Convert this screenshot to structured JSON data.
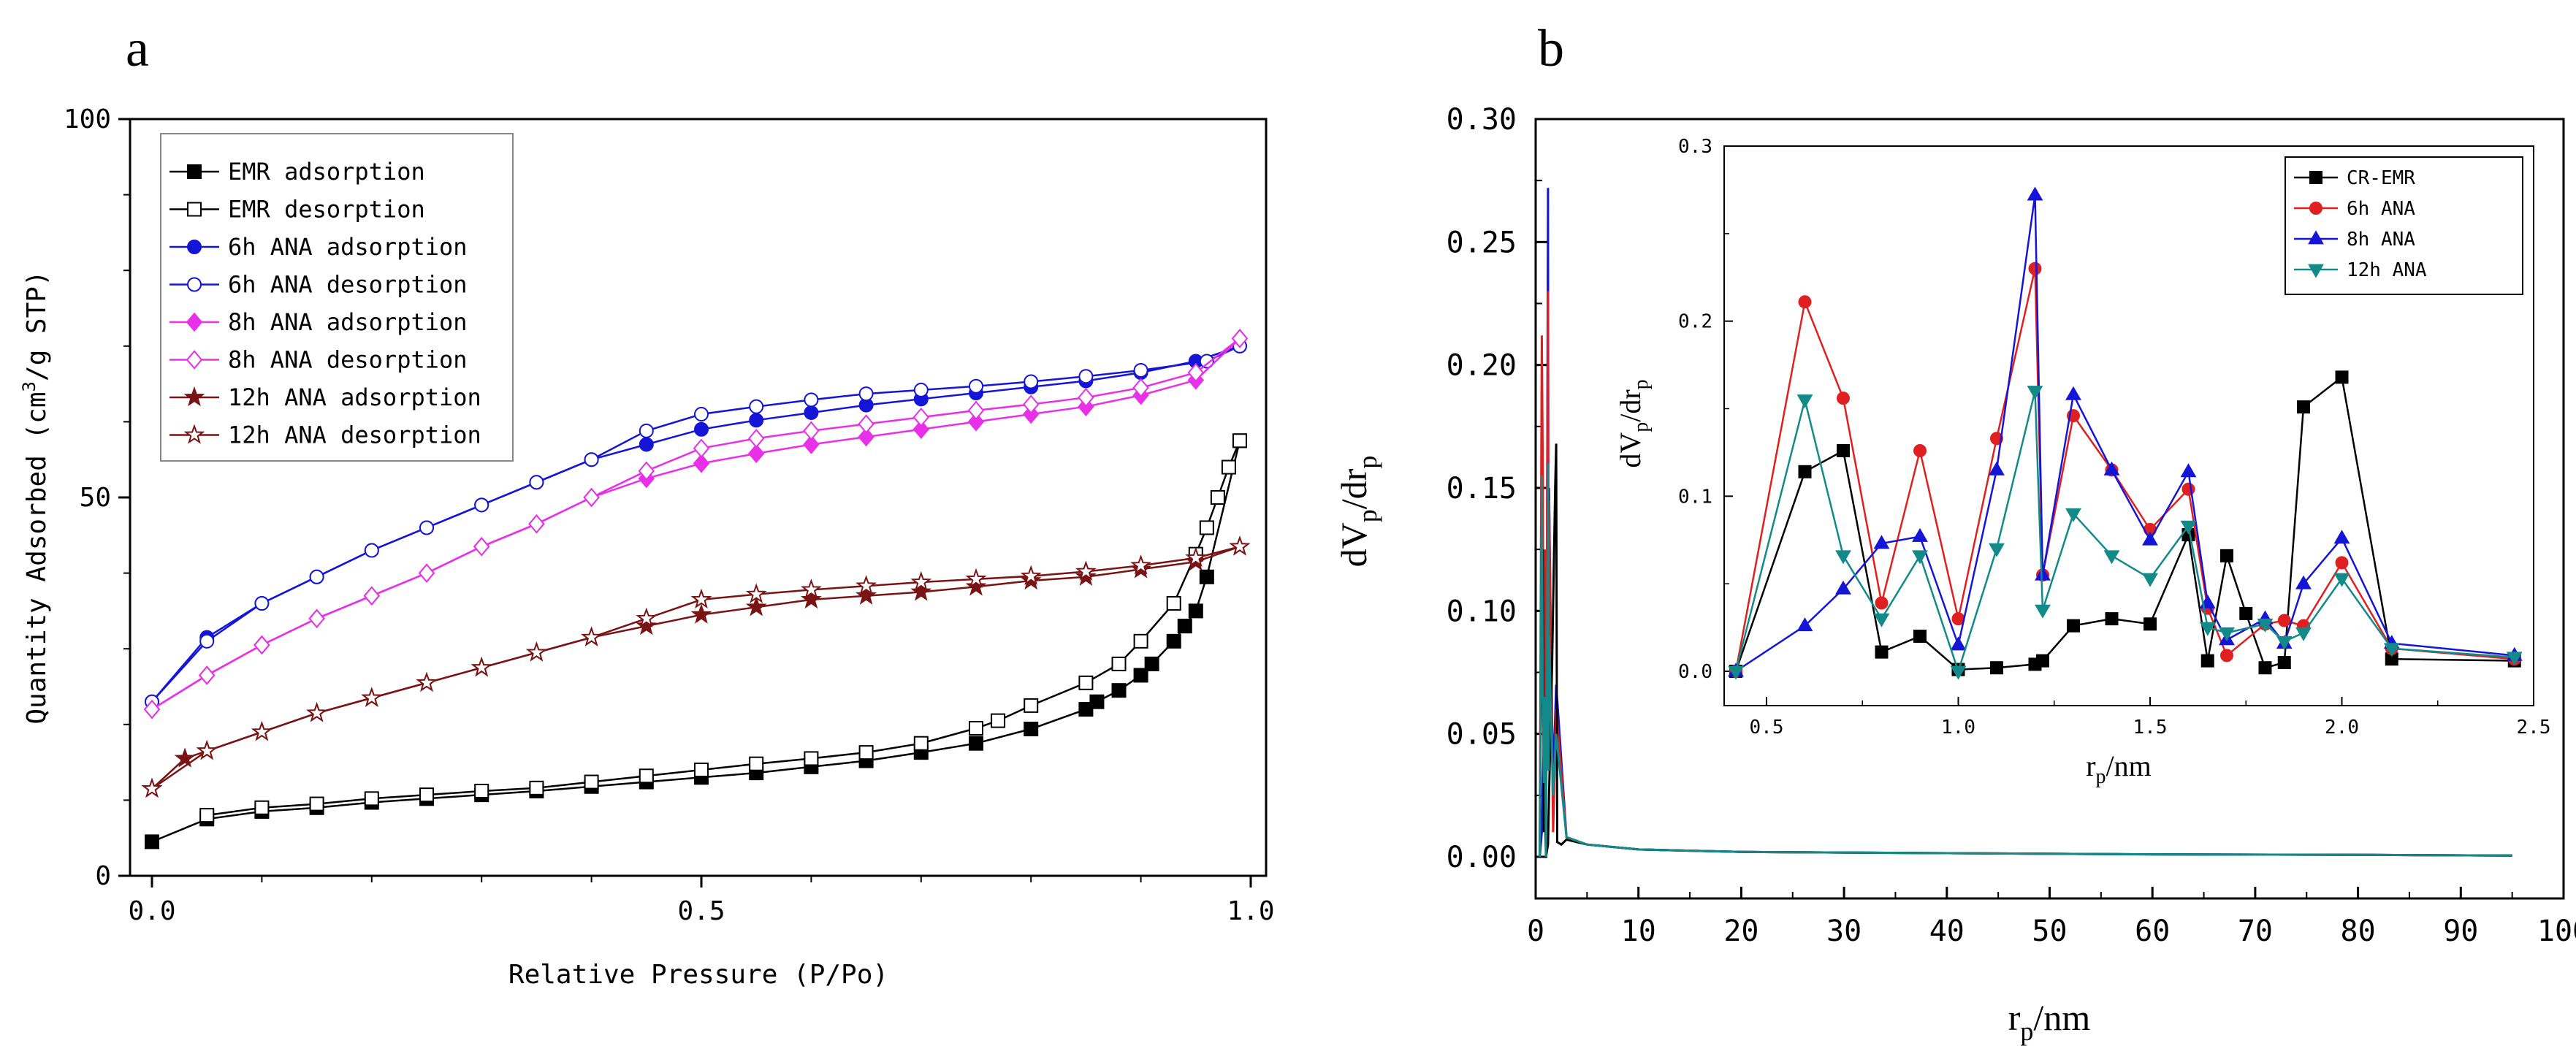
{
  "chart_data": [
    {
      "panel_label": "a",
      "type": "line",
      "xlabel": "Relative Pressure (P/Po)",
      "ylabel_parts": [
        "Quantity Adsorbed (cm",
        "3",
        "/g STP)"
      ],
      "xlim": [
        0,
        1.0
      ],
      "ylim": [
        0,
        100
      ],
      "xticks": [
        "0.0",
        "0.5",
        "1.0"
      ],
      "yticks": [
        "0",
        "50",
        "100"
      ],
      "series": [
        {
          "name": "EMR adsorption",
          "color": "#000000",
          "marker": "square",
          "filled": true,
          "x": [
            0.0,
            0.05,
            0.1,
            0.15,
            0.2,
            0.25,
            0.3,
            0.35,
            0.4,
            0.45,
            0.5,
            0.55,
            0.6,
            0.65,
            0.7,
            0.75,
            0.8,
            0.85,
            0.86,
            0.88,
            0.9,
            0.91,
            0.93,
            0.94,
            0.95,
            0.96,
            0.99
          ],
          "y": [
            4.5,
            7.5,
            8.5,
            9.0,
            9.7,
            10.2,
            10.7,
            11.2,
            11.8,
            12.4,
            13.0,
            13.6,
            14.4,
            15.2,
            16.3,
            17.5,
            19.4,
            22.0,
            23.0,
            24.5,
            26.5,
            28.0,
            31.0,
            33.0,
            35.0,
            39.5,
            57.5
          ]
        },
        {
          "name": "EMR desorption",
          "color": "#000000",
          "marker": "square",
          "filled": false,
          "x": [
            0.99,
            0.98,
            0.97,
            0.96,
            0.95,
            0.93,
            0.9,
            0.88,
            0.85,
            0.8,
            0.77,
            0.75,
            0.7,
            0.65,
            0.6,
            0.55,
            0.5,
            0.45,
            0.4,
            0.35,
            0.3,
            0.25,
            0.2,
            0.15,
            0.1,
            0.05
          ],
          "y": [
            57.5,
            54.0,
            50.0,
            46.0,
            42.5,
            36.0,
            31.0,
            28.0,
            25.5,
            22.5,
            20.5,
            19.5,
            17.5,
            16.3,
            15.5,
            14.8,
            14.0,
            13.2,
            12.4,
            11.6,
            11.2,
            10.7,
            10.2,
            9.5,
            9.0,
            8.0
          ]
        },
        {
          "name": "6h ANA adsorption",
          "color": "#1515d8",
          "marker": "circle",
          "filled": true,
          "x": [
            0.0,
            0.05,
            0.1,
            0.15,
            0.2,
            0.25,
            0.3,
            0.35,
            0.4,
            0.45,
            0.5,
            0.55,
            0.6,
            0.65,
            0.7,
            0.75,
            0.8,
            0.85,
            0.9,
            0.95,
            0.99
          ],
          "y": [
            23.0,
            31.5,
            36.0,
            39.5,
            43.0,
            46.0,
            49.0,
            52.0,
            55.0,
            57.0,
            59.0,
            60.2,
            61.2,
            62.2,
            63.0,
            63.8,
            64.6,
            65.4,
            66.5,
            68.0,
            70.0
          ]
        },
        {
          "name": "6h ANA desorption",
          "color": "#1515d8",
          "marker": "circle",
          "filled": false,
          "x": [
            0.99,
            0.96,
            0.9,
            0.85,
            0.8,
            0.75,
            0.7,
            0.65,
            0.6,
            0.55,
            0.5,
            0.45,
            0.4,
            0.35,
            0.3,
            0.25,
            0.2,
            0.15,
            0.1,
            0.05,
            0.0
          ],
          "y": [
            70.0,
            68.0,
            66.8,
            66.0,
            65.3,
            64.7,
            64.2,
            63.7,
            62.9,
            62.0,
            61.0,
            58.8,
            55.0,
            52.0,
            49.0,
            46.0,
            43.0,
            39.5,
            36.0,
            31.0,
            23.0
          ]
        },
        {
          "name": "8h ANA adsorption",
          "color": "#e830e8",
          "marker": "diamond",
          "filled": true,
          "x": [
            0.0,
            0.05,
            0.1,
            0.15,
            0.2,
            0.25,
            0.3,
            0.35,
            0.4,
            0.45,
            0.5,
            0.55,
            0.6,
            0.65,
            0.7,
            0.75,
            0.8,
            0.85,
            0.9,
            0.95,
            0.99
          ],
          "y": [
            22.0,
            26.5,
            30.5,
            34.0,
            37.0,
            40.0,
            43.5,
            46.5,
            50.0,
            52.5,
            54.5,
            55.8,
            57.0,
            58.0,
            59.0,
            60.0,
            61.0,
            62.0,
            63.5,
            65.5,
            71.0
          ]
        },
        {
          "name": "8h ANA desorption",
          "color": "#e830e8",
          "marker": "diamond",
          "filled": false,
          "x": [
            0.99,
            0.95,
            0.9,
            0.85,
            0.8,
            0.75,
            0.7,
            0.65,
            0.6,
            0.55,
            0.5,
            0.45,
            0.4,
            0.35,
            0.3,
            0.25,
            0.2,
            0.15,
            0.1,
            0.05,
            0.0
          ],
          "y": [
            71.0,
            66.5,
            64.5,
            63.2,
            62.3,
            61.5,
            60.6,
            59.7,
            58.8,
            57.8,
            56.5,
            53.5,
            50.0,
            46.5,
            43.5,
            40.0,
            37.0,
            34.0,
            30.5,
            26.5,
            22.0
          ]
        },
        {
          "name": "12h ANA adsorption",
          "color": "#7a1414",
          "marker": "star",
          "filled": true,
          "x": [
            0.0,
            0.03,
            0.05,
            0.1,
            0.15,
            0.2,
            0.25,
            0.3,
            0.35,
            0.4,
            0.45,
            0.5,
            0.55,
            0.6,
            0.65,
            0.7,
            0.75,
            0.8,
            0.85,
            0.9,
            0.95,
            0.99
          ],
          "y": [
            11.5,
            15.5,
            16.5,
            19.0,
            21.5,
            23.5,
            25.5,
            27.5,
            29.5,
            31.5,
            33.0,
            34.5,
            35.5,
            36.5,
            37.0,
            37.5,
            38.2,
            39.0,
            39.5,
            40.5,
            41.5,
            43.5
          ]
        },
        {
          "name": "12h ANA desorption",
          "color": "#7a1414",
          "marker": "star",
          "filled": false,
          "x": [
            0.99,
            0.95,
            0.9,
            0.85,
            0.8,
            0.75,
            0.7,
            0.65,
            0.6,
            0.55,
            0.5,
            0.45,
            0.4,
            0.35,
            0.3,
            0.25,
            0.2,
            0.15,
            0.1,
            0.05,
            0.0
          ],
          "y": [
            43.5,
            42.0,
            41.0,
            40.2,
            39.6,
            39.2,
            38.8,
            38.3,
            37.8,
            37.2,
            36.5,
            34.0,
            31.5,
            29.5,
            27.5,
            25.5,
            23.5,
            21.5,
            19.0,
            16.5,
            11.5
          ]
        }
      ]
    },
    {
      "panel_label": "b",
      "type": "line",
      "xlabel_main": "r",
      "xlabel_sub": "p",
      "xlabel_tail": "/nm",
      "ylabel_parts": [
        "dV",
        "p",
        "/dr",
        "p"
      ],
      "xlim": [
        0,
        100
      ],
      "ylim": [
        -0.01,
        0.3
      ],
      "xticks": [
        "0",
        "10",
        "20",
        "30",
        "40",
        "50",
        "60",
        "70",
        "80",
        "90",
        "100"
      ],
      "yticks": [
        "0.00",
        "0.05",
        "0.10",
        "0.15",
        "0.20",
        "0.25",
        "0.30"
      ],
      "series": [
        {
          "name": "8h ANA",
          "color": "#1515d8",
          "x": [
            0.4,
            0.6,
            0.7,
            0.8,
            0.9,
            1.0,
            1.1,
            1.2,
            1.25,
            1.3,
            1.5,
            1.7,
            2.0,
            3,
            5,
            10,
            20,
            40,
            60,
            80,
            95
          ],
          "y": [
            0,
            0.01,
            0.03,
            0.05,
            0.06,
            0.03,
            0.12,
            0.272,
            0.05,
            0.15,
            0.08,
            0.03,
            0.07,
            0.008,
            0.005,
            0.003,
            0.002,
            0.0015,
            0.001,
            0.0008,
            0.0005
          ]
        },
        {
          "name": "6h ANA",
          "color": "#e02020",
          "x": [
            0.4,
            0.6,
            0.7,
            0.8,
            0.9,
            1.0,
            1.1,
            1.2,
            1.25,
            1.3,
            1.5,
            1.7,
            2.0,
            3,
            5,
            10,
            20,
            40,
            60,
            80,
            95
          ],
          "y": [
            0,
            0.212,
            0.155,
            0.04,
            0.125,
            0.03,
            0.13,
            0.23,
            0.055,
            0.145,
            0.08,
            0.01,
            0.06,
            0.008,
            0.005,
            0.003,
            0.002,
            0.0015,
            0.001,
            0.0008,
            0.0005
          ]
        },
        {
          "name": "CR-EMR",
          "color": "#000000",
          "x": [
            0.4,
            0.6,
            0.7,
            0.8,
            0.9,
            1.0,
            1.2,
            1.3,
            1.6,
            1.9,
            2.0,
            2.1,
            2.5,
            3,
            5,
            10,
            20,
            40,
            60,
            80,
            95
          ],
          "y": [
            0,
            0.115,
            0.125,
            0.01,
            0.02,
            0.0,
            0.005,
            0.025,
            0.078,
            0.15,
            0.168,
            0.006,
            0.005,
            0.007,
            0.005,
            0.003,
            0.002,
            0.0015,
            0.001,
            0.0008,
            0.0005
          ]
        },
        {
          "name": "12h ANA",
          "color": "#138a8a",
          "x": [
            0.4,
            0.6,
            0.7,
            0.8,
            0.9,
            1.0,
            1.1,
            1.2,
            1.25,
            1.3,
            1.5,
            1.7,
            2.0,
            3,
            5,
            10,
            20,
            40,
            60,
            80,
            95
          ],
          "y": [
            0,
            0.155,
            0.065,
            0.03,
            0.065,
            0.0,
            0.07,
            0.16,
            0.035,
            0.09,
            0.055,
            0.025,
            0.05,
            0.008,
            0.005,
            0.003,
            0.002,
            0.0015,
            0.001,
            0.0008,
            0.0005
          ]
        }
      ]
    },
    {
      "panel_label": "b-inset",
      "type": "line",
      "xlabel_main": "r",
      "xlabel_sub": "p",
      "xlabel_tail": "/nm",
      "ylabel_parts": [
        "dV",
        "p",
        "/dr",
        "p"
      ],
      "xlim": [
        0.3,
        2.5
      ],
      "ylim": [
        -0.01,
        0.3
      ],
      "xticks": [
        "0.5",
        "1.0",
        "1.5",
        "2.0",
        "2.5"
      ],
      "yticks": [
        "0.0",
        "0.1",
        "0.2",
        "0.3"
      ],
      "series": [
        {
          "name": "CR-EMR",
          "color": "#000000",
          "marker": "square",
          "x": [
            0.42,
            0.6,
            0.7,
            0.8,
            0.9,
            1.0,
            1.1,
            1.2,
            1.22,
            1.3,
            1.4,
            1.5,
            1.6,
            1.65,
            1.7,
            1.75,
            1.8,
            1.85,
            1.9,
            2.0,
            2.13,
            2.45
          ],
          "y": [
            0.0,
            0.114,
            0.126,
            0.011,
            0.02,
            0.001,
            0.002,
            0.004,
            0.006,
            0.026,
            0.03,
            0.027,
            0.078,
            0.006,
            0.066,
            0.033,
            0.002,
            0.005,
            0.151,
            0.168,
            0.007,
            0.006
          ]
        },
        {
          "name": "6h ANA",
          "color": "#e02020",
          "marker": "circle",
          "x": [
            0.42,
            0.6,
            0.7,
            0.8,
            0.9,
            1.0,
            1.1,
            1.2,
            1.22,
            1.3,
            1.4,
            1.5,
            1.6,
            1.65,
            1.7,
            1.8,
            1.85,
            1.9,
            2.0,
            2.13,
            2.45
          ],
          "y": [
            0.0,
            0.211,
            0.156,
            0.039,
            0.126,
            0.03,
            0.133,
            0.23,
            0.055,
            0.146,
            0.115,
            0.081,
            0.104,
            0.036,
            0.009,
            0.027,
            0.029,
            0.026,
            0.062,
            0.013,
            0.007
          ]
        },
        {
          "name": "8h ANA",
          "color": "#1515d8",
          "marker": "triangle-up",
          "x": [
            0.42,
            0.6,
            0.7,
            0.8,
            0.9,
            1.0,
            1.1,
            1.2,
            1.22,
            1.3,
            1.4,
            1.5,
            1.6,
            1.65,
            1.7,
            1.8,
            1.85,
            1.9,
            2.0,
            2.13,
            2.45
          ],
          "y": [
            0.0,
            0.026,
            0.047,
            0.073,
            0.077,
            0.015,
            0.115,
            0.272,
            0.055,
            0.158,
            0.115,
            0.075,
            0.114,
            0.039,
            0.018,
            0.03,
            0.016,
            0.05,
            0.076,
            0.016,
            0.009
          ]
        },
        {
          "name": "12h ANA",
          "color": "#138a8a",
          "marker": "triangle-down",
          "x": [
            0.42,
            0.6,
            0.7,
            0.8,
            0.9,
            1.0,
            1.1,
            1.2,
            1.22,
            1.3,
            1.4,
            1.5,
            1.6,
            1.65,
            1.7,
            1.8,
            1.85,
            1.9,
            2.0,
            2.13,
            2.45
          ],
          "y": [
            0.0,
            0.155,
            0.066,
            0.03,
            0.066,
            0.0,
            0.07,
            0.16,
            0.035,
            0.09,
            0.066,
            0.053,
            0.083,
            0.025,
            0.022,
            0.027,
            0.017,
            0.022,
            0.053,
            0.013,
            0.008
          ]
        }
      ]
    }
  ]
}
